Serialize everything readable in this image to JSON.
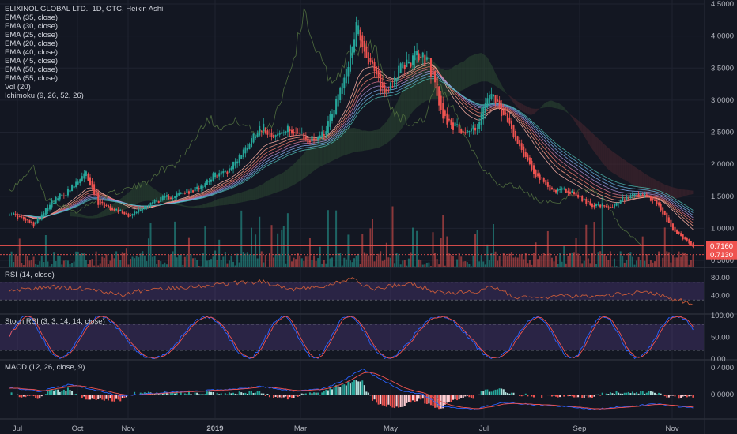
{
  "colors": {
    "background": "#131722",
    "grid": "#1f2330",
    "up": "#26a69a",
    "down": "#ef5350",
    "rsi_band": "#7e57c2",
    "rsi_line": "#c65a3a",
    "stoch_k": "#2962ff",
    "stoch_d": "#ef5350",
    "macd_line": "#2962ff",
    "signal_line": "#ef5350",
    "text": "#b2b5be",
    "cloud_bull": "#2e4a33",
    "cloud_bear": "#4a2630"
  },
  "legend": {
    "title": "ELIXINOL GLOBAL LTD., 1D, OTC, Heikin Ashi",
    "studies": [
      "EMA (35, close)",
      "EMA (30, close)",
      "EMA (25, close)",
      "EMA (20, close)",
      "EMA (40, close)",
      "EMA (45, close)",
      "EMA (50, close)",
      "EMA (55, close)",
      "Vol (20)",
      "Ichimoku (9, 26, 52, 26)"
    ]
  },
  "panes": {
    "rsi_label": "RSI (14, close)",
    "stoch_label": "Stoch RSI (3, 3, 14, 14, close)",
    "macd_label": "MACD (12, 26, close, 9)"
  },
  "chart_data": [
    {
      "type": "candlestick",
      "chart_style": "Heikin Ashi",
      "ylim": [
        0.5,
        4.5
      ],
      "y_ticks": [
        "4.5000",
        "4.0000",
        "3.5000",
        "3.0000",
        "2.5000",
        "2.0000",
        "1.5000",
        "1.0000",
        "0.5000"
      ],
      "price_labels": [
        {
          "text": "0.7160",
          "value": 0.716
        },
        {
          "text": "0.7130",
          "value": 0.713
        }
      ],
      "x_ticks": [
        "Jul",
        "Oct",
        "Nov",
        "2019",
        "Mar",
        "May",
        "Jul",
        "Sep",
        "Nov"
      ],
      "trend_anchors": [
        [
          0,
          1.25
        ],
        [
          12,
          1.05
        ],
        [
          20,
          1.4
        ],
        [
          30,
          1.6
        ],
        [
          38,
          1.85
        ],
        [
          44,
          1.4
        ],
        [
          52,
          1.3
        ],
        [
          60,
          1.2
        ],
        [
          70,
          1.4
        ],
        [
          80,
          1.5
        ],
        [
          92,
          1.6
        ],
        [
          100,
          1.8
        ],
        [
          108,
          1.9
        ],
        [
          116,
          2.2
        ],
        [
          124,
          2.6
        ],
        [
          132,
          2.45
        ],
        [
          140,
          2.55
        ],
        [
          148,
          2.35
        ],
        [
          156,
          2.5
        ],
        [
          162,
          3.0
        ],
        [
          168,
          3.6
        ],
        [
          172,
          4.2
        ],
        [
          178,
          3.6
        ],
        [
          186,
          3.1
        ],
        [
          194,
          3.5
        ],
        [
          202,
          3.7
        ],
        [
          208,
          3.6
        ],
        [
          214,
          2.8
        ],
        [
          220,
          2.6
        ],
        [
          226,
          2.5
        ],
        [
          232,
          2.6
        ],
        [
          238,
          3.1
        ],
        [
          244,
          2.8
        ],
        [
          250,
          2.5
        ],
        [
          256,
          2.1
        ],
        [
          262,
          1.8
        ],
        [
          268,
          1.6
        ],
        [
          274,
          1.6
        ],
        [
          280,
          1.55
        ],
        [
          286,
          1.4
        ],
        [
          292,
          1.35
        ],
        [
          298,
          1.3
        ],
        [
          304,
          1.45
        ],
        [
          310,
          1.5
        ],
        [
          316,
          1.5
        ],
        [
          322,
          1.35
        ],
        [
          328,
          1.0
        ],
        [
          334,
          0.85
        ],
        [
          339,
          0.72
        ]
      ],
      "volume_max": 10
    },
    {
      "type": "line",
      "name": "RSI (14, close)",
      "ylim": [
        0,
        100
      ],
      "band": [
        30,
        70
      ],
      "y_ticks": [
        "80.00",
        "40.00"
      ],
      "anchors": [
        [
          0,
          50
        ],
        [
          20,
          60
        ],
        [
          40,
          55
        ],
        [
          55,
          42
        ],
        [
          70,
          55
        ],
        [
          90,
          60
        ],
        [
          110,
          68
        ],
        [
          125,
          72
        ],
        [
          140,
          55
        ],
        [
          155,
          60
        ],
        [
          170,
          78
        ],
        [
          180,
          55
        ],
        [
          190,
          62
        ],
        [
          200,
          66
        ],
        [
          215,
          45
        ],
        [
          230,
          48
        ],
        [
          240,
          60
        ],
        [
          250,
          38
        ],
        [
          262,
          33
        ],
        [
          275,
          40
        ],
        [
          290,
          35
        ],
        [
          305,
          45
        ],
        [
          318,
          48
        ],
        [
          328,
          33
        ],
        [
          339,
          22
        ]
      ]
    },
    {
      "type": "line",
      "name": "Stoch RSI (3, 3, 14, 14, close)",
      "ylim": [
        0,
        100
      ],
      "band": [
        20,
        80
      ],
      "y_ticks": [
        "100.00",
        "50.00",
        "0.00"
      ]
    },
    {
      "type": "line",
      "name": "MACD (12, 26, close, 9)",
      "y_ticks": [
        "0.4000",
        "0.0000"
      ],
      "macd_anchors": [
        [
          0,
          0.1
        ],
        [
          15,
          0.05
        ],
        [
          30,
          0.15
        ],
        [
          45,
          0.05
        ],
        [
          55,
          -0.02
        ],
        [
          70,
          0.02
        ],
        [
          90,
          0.05
        ],
        [
          110,
          0.08
        ],
        [
          125,
          0.12
        ],
        [
          140,
          0.05
        ],
        [
          155,
          0.08
        ],
        [
          165,
          0.2
        ],
        [
          175,
          0.38
        ],
        [
          185,
          0.22
        ],
        [
          195,
          0.05
        ],
        [
          205,
          0.0
        ],
        [
          215,
          -0.18
        ],
        [
          230,
          -0.22
        ],
        [
          245,
          -0.12
        ],
        [
          260,
          -0.15
        ],
        [
          275,
          -0.18
        ],
        [
          290,
          -0.22
        ],
        [
          305,
          -0.18
        ],
        [
          320,
          -0.14
        ],
        [
          339,
          -0.2
        ]
      ]
    }
  ]
}
